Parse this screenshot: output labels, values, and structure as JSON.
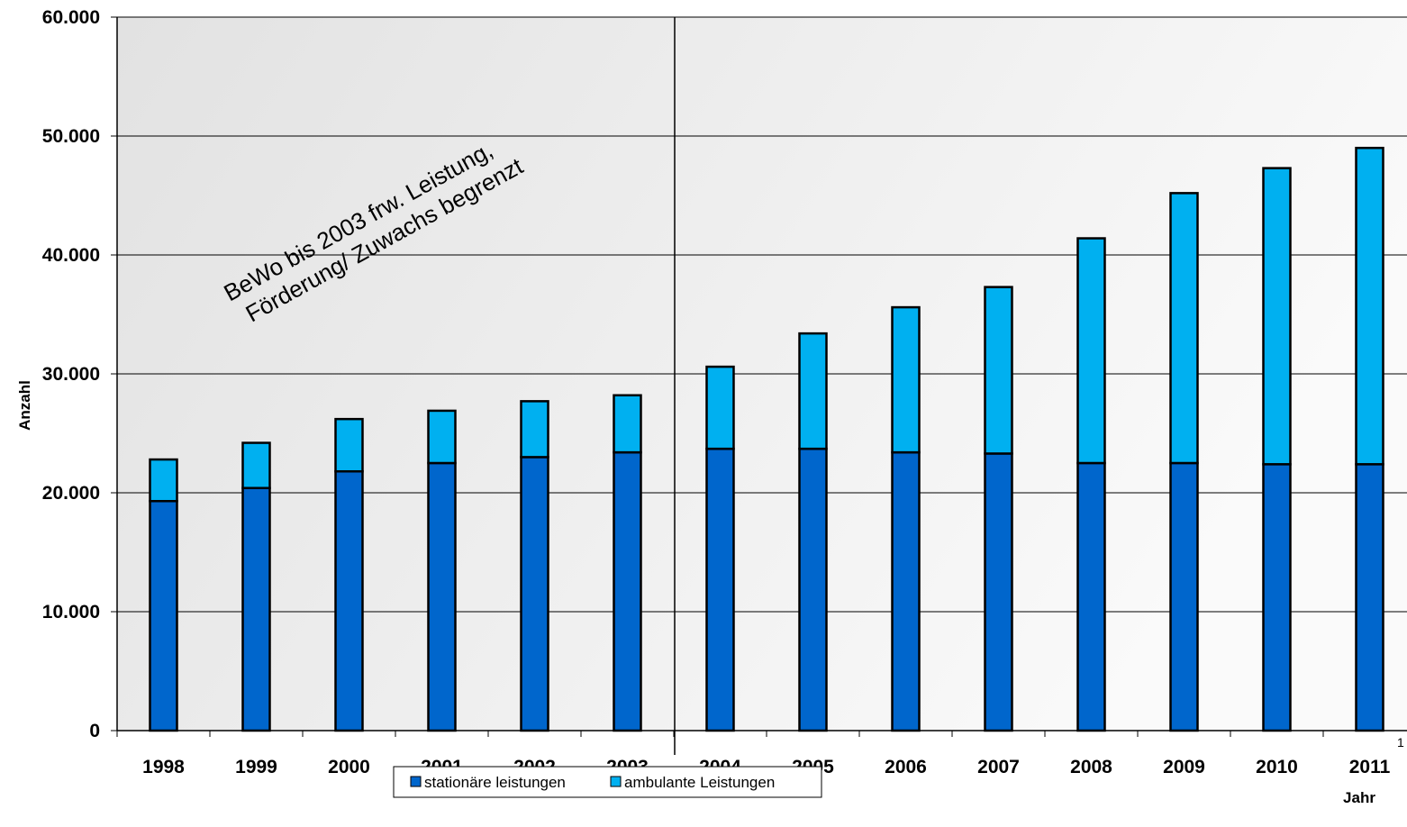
{
  "chart_data": {
    "type": "bar",
    "stacked": true,
    "categories": [
      "1998",
      "1999",
      "2000",
      "2001",
      "2002",
      "2003",
      "2004",
      "2005",
      "2006",
      "2007",
      "2008",
      "2009",
      "2010",
      "2011"
    ],
    "x_tick_labels": [
      "1998",
      "1999",
      "2000",
      "2001",
      "2002",
      "2003",
      "2004",
      "2005",
      "2006",
      "2007",
      "2008",
      "2009",
      "2010",
      "2011"
    ],
    "series": [
      {
        "name": "stationäre leistungen",
        "color": "#0066CC",
        "values": [
          19300,
          20400,
          21800,
          22500,
          23000,
          23400,
          23700,
          23700,
          23400,
          23300,
          22500,
          22500,
          22400,
          22400
        ]
      },
      {
        "name": "ambulante Leistungen",
        "color": "#00B0F0",
        "values": [
          3500,
          3800,
          4400,
          4400,
          4700,
          4800,
          6900,
          9700,
          12200,
          14000,
          18900,
          22700,
          24900,
          26600
        ]
      }
    ],
    "xlabel": "Jahr",
    "ylabel": "Anzahl",
    "ylim": [
      0,
      60000
    ],
    "y_ticks": [
      0,
      10000,
      20000,
      30000,
      40000,
      50000,
      60000
    ],
    "y_tick_labels": [
      "0",
      "10.000",
      "20.000",
      "30.000",
      "40.000",
      "50.000",
      "60.000"
    ],
    "grid": true,
    "divider_between": [
      "2003",
      "2004"
    ],
    "annotation": {
      "lines": [
        "BeWo bis 2003 frw. Leistung,",
        "Förderung/ Zuwachs begrenzt"
      ]
    },
    "legend_position": "bottom-center",
    "corner_mark": "1"
  },
  "colors": {
    "plot_background_left": "#e6e6e6",
    "plot_background_right": "#f9f9f9",
    "stationaer": "#0066CC",
    "ambulant": "#00B0F0"
  }
}
